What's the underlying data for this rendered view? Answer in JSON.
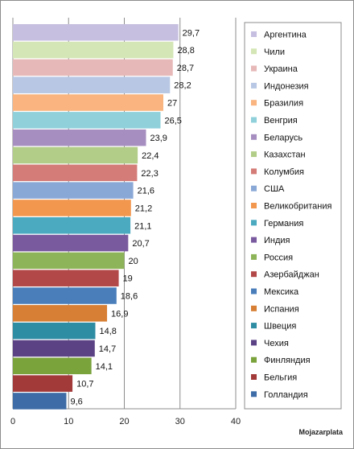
{
  "chart_data": {
    "type": "bar",
    "orientation": "horizontal",
    "categories": [
      "Аргентина",
      "Чили",
      "Украина",
      "Индонезия",
      "Бразилия",
      "Венгрия",
      "Беларусь",
      "Казахстан",
      "Колумбия",
      "США",
      "Великобритания",
      "Германия",
      "Индия",
      "Россия",
      "Азербайджан",
      "Мексика",
      "Испания",
      "Швеция",
      "Чехия",
      "Финляндия",
      "Бельгия",
      "Голландия"
    ],
    "values": [
      29.7,
      28.8,
      28.7,
      28.2,
      27,
      26.5,
      23.9,
      22.4,
      22.3,
      21.6,
      21.2,
      21.1,
      20.7,
      20,
      19,
      18.6,
      16.9,
      14.8,
      14.7,
      14.1,
      10.7,
      9.6
    ],
    "data_labels": [
      "29,7",
      "28,8",
      "28,7",
      "28,2",
      "27",
      "26,5",
      "23,9",
      "22,4",
      "22,3",
      "21,6",
      "21,2",
      "21,1",
      "20,7",
      "20",
      "19",
      "18,6",
      "16,9",
      "14,8",
      "14,7",
      "14,1",
      "10,7",
      "9,6"
    ],
    "colors": [
      "#c7bfe0",
      "#d4e6b5",
      "#e6b9b8",
      "#b8c7e3",
      "#f9b47f",
      "#8fd0db",
      "#a68fc0",
      "#b2cd88",
      "#d47c78",
      "#8aa8d6",
      "#f2974e",
      "#4ba9c0",
      "#7a5a9e",
      "#8db458",
      "#b24848",
      "#4a7ebb",
      "#d77f34",
      "#2e8ca3",
      "#5b4285",
      "#7aa33c",
      "#a33a3a",
      "#3d6ca6"
    ],
    "xlim": [
      0,
      40
    ],
    "xticks": [
      "0",
      "10",
      "20",
      "30",
      "40"
    ],
    "xgrid": true,
    "legend_position": "right",
    "title": "",
    "xlabel": "",
    "ylabel": ""
  },
  "watermark": "Mojazarplata"
}
